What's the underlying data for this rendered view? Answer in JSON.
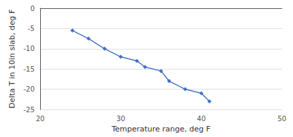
{
  "chart_data": {
    "type": "line",
    "xlabel": "Temperature range, deg F",
    "ylabel": "Delta T in 10in slab, deg F",
    "x": [
      24,
      26,
      28,
      30,
      32,
      33,
      35,
      36,
      38,
      40,
      41
    ],
    "values": [
      -5.5,
      -7.5,
      -10.0,
      -12.0,
      -13.0,
      -14.5,
      -15.5,
      -18.0,
      -20.0,
      -21.0,
      -23.0
    ],
    "color": "#4472C4",
    "marker": "diamond",
    "xlim": [
      20,
      50
    ],
    "ylim": [
      -25,
      0
    ],
    "xticks": [
      20,
      30,
      40,
      50
    ],
    "yticks": [
      0,
      -5,
      -10,
      -15,
      -20,
      -25
    ],
    "grid": true
  }
}
